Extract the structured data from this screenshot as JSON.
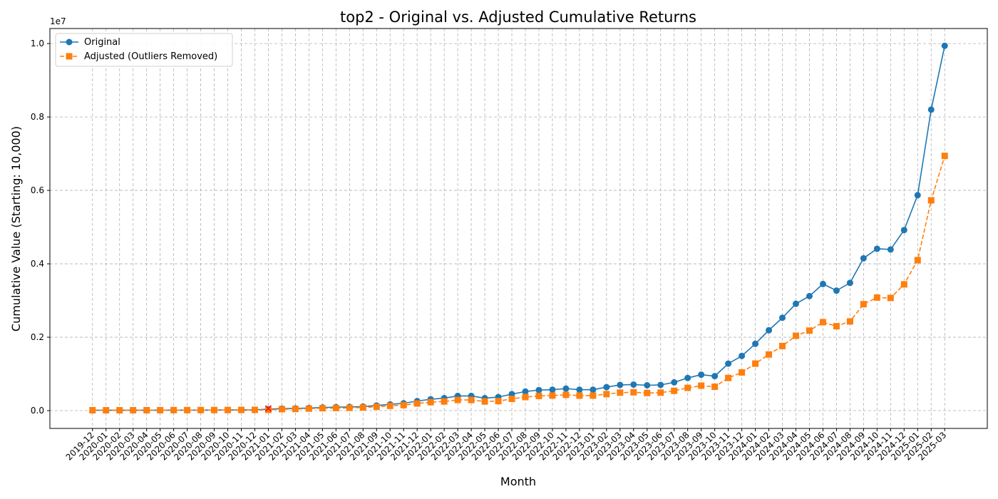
{
  "chart_data": {
    "type": "line",
    "title": "top2 - Original vs. Adjusted Cumulative Returns",
    "xlabel": "Month",
    "ylabel": "Cumulative Value (Starting: 10,000)",
    "y_offset_label": "1e7",
    "categories": [
      "2019-12",
      "2020-01",
      "2020-02",
      "2020-03",
      "2020-04",
      "2020-05",
      "2020-06",
      "2020-07",
      "2020-08",
      "2020-09",
      "2020-10",
      "2020-11",
      "2020-12",
      "2021-01",
      "2021-02",
      "2021-03",
      "2021-04",
      "2021-05",
      "2021-06",
      "2021-07",
      "2021-08",
      "2021-09",
      "2021-10",
      "2021-11",
      "2021-12",
      "2022-01",
      "2022-02",
      "2022-03",
      "2022-04",
      "2022-05",
      "2022-06",
      "2022-07",
      "2022-08",
      "2022-09",
      "2022-10",
      "2022-11",
      "2022-12",
      "2023-01",
      "2023-02",
      "2023-03",
      "2023-04",
      "2023-05",
      "2023-06",
      "2023-07",
      "2023-08",
      "2023-09",
      "2023-10",
      "2023-11",
      "2023-12",
      "2024-01",
      "2024-02",
      "2024-03",
      "2024-04",
      "2024-05",
      "2024-06",
      "2024-07",
      "2024-08",
      "2024-09",
      "2024-10",
      "2024-11",
      "2024-12",
      "2025-01",
      "2025-02",
      "2025-03"
    ],
    "series": [
      {
        "name": "Original",
        "color": "#1f77b4",
        "marker": "circle",
        "linestyle": "solid",
        "values": [
          10000,
          10500,
          9800,
          10800,
          11500,
          12200,
          13500,
          14200,
          14800,
          15500,
          17000,
          19500,
          22000,
          40000,
          55000,
          60000,
          70000,
          85000,
          95000,
          100000,
          110000,
          140000,
          170000,
          200000,
          260000,
          310000,
          340000,
          400000,
          400000,
          340000,
          370000,
          450000,
          520000,
          560000,
          570000,
          600000,
          570000,
          570000,
          640000,
          700000,
          710000,
          690000,
          700000,
          770000,
          890000,
          980000,
          940000,
          1280000,
          1490000,
          1820000,
          2190000,
          2530000,
          2910000,
          3120000,
          3450000,
          3270000,
          3480000,
          4150000,
          4410000,
          4390000,
          4920000,
          5870000,
          8200000,
          9940000
        ]
      },
      {
        "name": "Adjusted (Outliers Removed)",
        "color": "#ff7f0e",
        "marker": "square",
        "linestyle": "dashed",
        "values": [
          10000,
          10500,
          9800,
          10800,
          11500,
          12200,
          13500,
          14200,
          14800,
          15500,
          17000,
          19000,
          20000,
          20000,
          40000,
          45000,
          55000,
          65000,
          70000,
          75000,
          85000,
          105000,
          130000,
          150000,
          195000,
          230000,
          250000,
          290000,
          290000,
          250000,
          260000,
          320000,
          370000,
          400000,
          410000,
          430000,
          410000,
          410000,
          450000,
          490000,
          500000,
          480000,
          490000,
          540000,
          620000,
          680000,
          650000,
          890000,
          1040000,
          1280000,
          1530000,
          1760000,
          2040000,
          2180000,
          2410000,
          2300000,
          2430000,
          2900000,
          3080000,
          3070000,
          3440000,
          4100000,
          5730000,
          6940000
        ]
      }
    ],
    "outliers": {
      "color": "red",
      "marker": "x",
      "categories": [
        "2021-01"
      ],
      "values": [
        60000
      ]
    },
    "xlim": [
      -3.15,
      66.15
    ],
    "ylim": [
      -485000,
      10410000
    ],
    "yticks": [
      {
        "value": 0,
        "label": "0.0"
      },
      {
        "value": 2000000,
        "label": "0.2"
      },
      {
        "value": 4000000,
        "label": "0.4"
      },
      {
        "value": 6000000,
        "label": "0.6"
      },
      {
        "value": 8000000,
        "label": "0.8"
      },
      {
        "value": 10000000,
        "label": "1.0"
      }
    ],
    "grid": true,
    "legend": "upper left"
  }
}
